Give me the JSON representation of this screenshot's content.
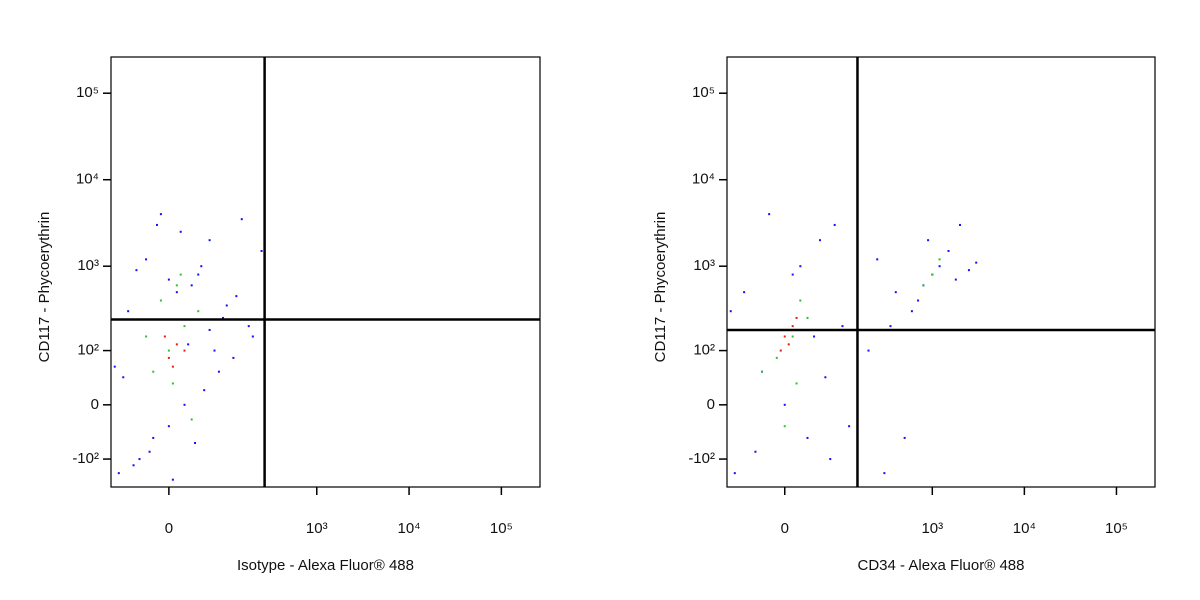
{
  "chart_data": [
    {
      "type": "scatter",
      "xlabel": "Isotype - Alexa Fluor® 488",
      "ylabel": "CD117 - Phycoerythrin",
      "scale": "biexponential",
      "xlim": [
        -100,
        262144
      ],
      "ylim": [
        -220,
        262144
      ],
      "xticks": [
        0,
        {
          "value": 1000,
          "label": "10³"
        },
        {
          "value": 10000,
          "label": "10⁴"
        },
        {
          "value": 100000,
          "label": "10⁵"
        }
      ],
      "yticks": [
        {
          "value": -100,
          "label": "-10²"
        },
        0,
        {
          "value": 100,
          "label": "10²"
        },
        {
          "value": 1000,
          "label": "10³"
        },
        {
          "value": 10000,
          "label": "10⁴"
        },
        {
          "value": 100000,
          "label": "10⁵"
        }
      ],
      "quadrant": {
        "x": 270,
        "y": 240
      },
      "series": [
        {
          "color": "#1010ff",
          "x": [
            -80,
            -40,
            -20,
            0,
            20,
            50,
            80,
            120,
            200,
            -60,
            10,
            40,
            -30,
            60,
            150,
            -10,
            30,
            90,
            -50,
            5,
            250,
            70,
            -70,
            15,
            100,
            -25,
            45,
            180,
            0,
            -90,
            35,
            130,
            -15,
            25,
            60,
            -45
          ],
          "y": [
            -150,
            -100,
            -50,
            -30,
            0,
            20,
            50,
            80,
            150,
            300,
            500,
            800,
            1200,
            2000,
            3500,
            4000,
            600,
            250,
            -120,
            -180,
            1500,
            100,
            40,
            2500,
            350,
            -80,
            1000,
            200,
            700,
            60,
            -60,
            450,
            3000,
            120,
            180,
            900
          ]
        },
        {
          "color": "#30c030",
          "x": [
            -20,
            0,
            20,
            40,
            -10,
            10,
            30,
            -30,
            15,
            5
          ],
          "y": [
            50,
            100,
            200,
            300,
            400,
            600,
            -20,
            150,
            800,
            30
          ]
        },
        {
          "color": "#e02010",
          "x": [
            0,
            10,
            -5,
            20,
            5
          ],
          "y": [
            80,
            120,
            150,
            100,
            60
          ]
        }
      ]
    },
    {
      "type": "scatter",
      "xlabel": "CD34 - Alexa Fluor® 488",
      "ylabel": "CD117 - Phycoerythrin",
      "scale": "biexponential",
      "xlim": [
        -100,
        262144
      ],
      "ylim": [
        -220,
        262144
      ],
      "xticks": [
        0,
        {
          "value": 1000,
          "label": "10³"
        },
        {
          "value": 10000,
          "label": "10⁴"
        },
        {
          "value": 100000,
          "label": "10⁵"
        }
      ],
      "yticks": [
        {
          "value": -100,
          "label": "-10²"
        },
        0,
        {
          "value": 100,
          "label": "10²"
        },
        {
          "value": 1000,
          "label": "10³"
        },
        {
          "value": 10000,
          "label": "10⁴"
        },
        {
          "value": 100000,
          "label": "10⁵"
        }
      ],
      "quadrant": {
        "x": 150,
        "y": 180
      },
      "series": [
        {
          "color": "#1010ff",
          "x": [
            -80,
            -40,
            0,
            30,
            60,
            100,
            150,
            -60,
            20,
            80,
            -20,
            50,
            300,
            500,
            700,
            1000,
            1500,
            2000,
            800,
            1200,
            600,
            400,
            250,
            200,
            120,
            900,
            1800,
            2500,
            -90,
            10,
            40,
            -30,
            350,
            150,
            3000,
            70
          ],
          "y": [
            -150,
            -80,
            0,
            -50,
            40,
            200,
            100,
            500,
            1000,
            3000,
            4000,
            2000,
            -150,
            -50,
            400,
            800,
            1500,
            3000,
            600,
            1000,
            300,
            500,
            1200,
            100,
            -30,
            2000,
            700,
            900,
            300,
            800,
            150,
            50,
            200,
            600,
            1100,
            -100
          ]
        },
        {
          "color": "#30c030",
          "x": [
            -10,
            10,
            30,
            -30,
            0,
            20,
            1000,
            1200,
            800,
            15
          ],
          "y": [
            80,
            150,
            250,
            50,
            -30,
            400,
            800,
            1200,
            600,
            30
          ]
        },
        {
          "color": "#e02010",
          "x": [
            0,
            10,
            -5,
            15,
            5
          ],
          "y": [
            150,
            200,
            100,
            250,
            120
          ]
        }
      ]
    }
  ]
}
